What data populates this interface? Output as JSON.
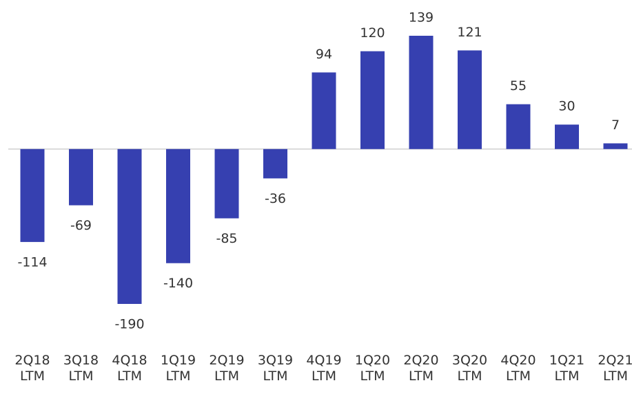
{
  "chart_data": {
    "type": "bar",
    "categories": [
      "2Q18 LTM",
      "3Q18 LTM",
      "4Q18 LTM",
      "1Q19 LTM",
      "2Q19 LTM",
      "3Q19 LTM",
      "4Q19 LTM",
      "1Q20 LTM",
      "2Q20 LTM",
      "3Q20 LTM",
      "4Q20 LTM",
      "1Q21 LTM",
      "2Q21 LTM"
    ],
    "values": [
      -114,
      -69,
      -190,
      -140,
      -85,
      -36,
      94,
      120,
      139,
      121,
      55,
      30,
      7
    ],
    "color": "#3640b0"
  }
}
